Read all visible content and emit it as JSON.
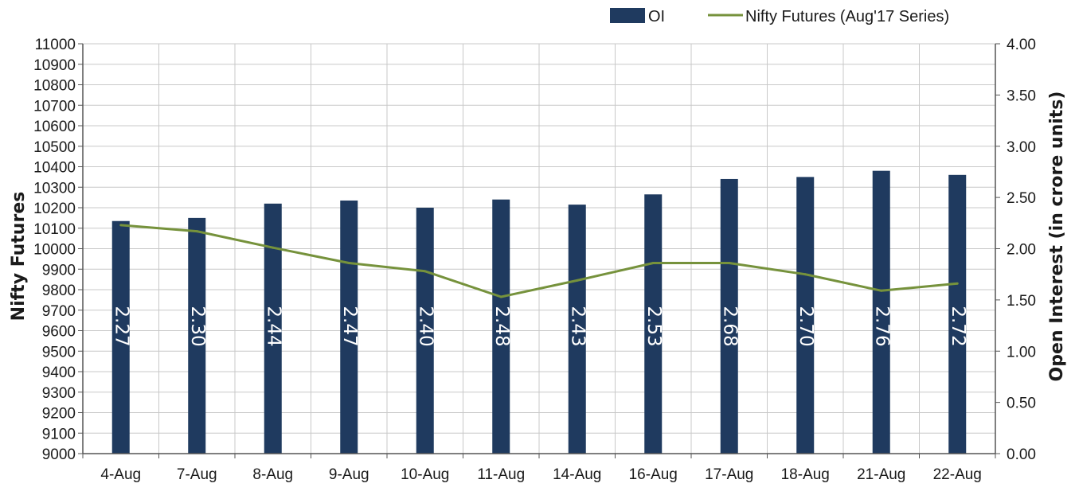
{
  "chart_data": {
    "type": "bar",
    "categories": [
      "4-Aug",
      "7-Aug",
      "8-Aug",
      "9-Aug",
      "10-Aug",
      "11-Aug",
      "14-Aug",
      "16-Aug",
      "17-Aug",
      "18-Aug",
      "21-Aug",
      "22-Aug"
    ],
    "series": [
      {
        "name": "OI",
        "type": "bar",
        "axis": "right",
        "color": "#1f3a5f",
        "values": [
          2.27,
          2.3,
          2.44,
          2.47,
          2.4,
          2.48,
          2.43,
          2.53,
          2.68,
          2.7,
          2.76,
          2.72
        ],
        "labels": [
          "2.27",
          "2.30",
          "2.44",
          "2.47",
          "2.40",
          "2.48",
          "2.43",
          "2.53",
          "2.68",
          "2.70",
          "2.76",
          "2.72"
        ]
      },
      {
        "name": "Nifty Futures (Aug'17 Series)",
        "type": "line",
        "axis": "left",
        "color": "#76923c",
        "values": [
          10115,
          10085,
          10005,
          9930,
          9890,
          9765,
          9845,
          9930,
          9930,
          9875,
          9795,
          9830
        ]
      }
    ],
    "ylabel": "Nifty Futures",
    "y2label": "Open Interest (in crore units)",
    "ylim": [
      9000,
      11000
    ],
    "y2lim": [
      0,
      4
    ],
    "yticks": [
      "9000",
      "9100",
      "9200",
      "9300",
      "9400",
      "9500",
      "9600",
      "9700",
      "9800",
      "9900",
      "10000",
      "10100",
      "10200",
      "10300",
      "10400",
      "10500",
      "10600",
      "10700",
      "10800",
      "10900",
      "11000"
    ],
    "y2ticks": [
      "0.00",
      "0.50",
      "1.00",
      "1.50",
      "2.00",
      "2.50",
      "3.00",
      "3.50",
      "4.00"
    ],
    "grid": true,
    "legend_position": "top-right"
  }
}
